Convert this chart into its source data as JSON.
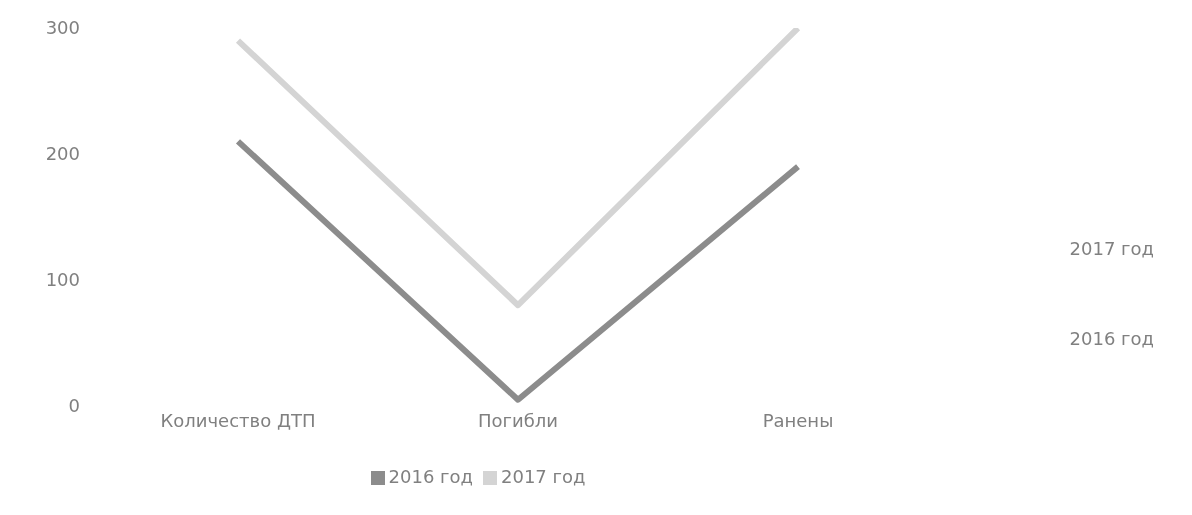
{
  "chart_data": {
    "type": "line",
    "categories": [
      "Количество ДТП",
      "Погибли",
      "Ранены"
    ],
    "series": [
      {
        "name": "2016 год",
        "color": "#8c8c8c",
        "values": [
          210,
          5,
          190
        ]
      },
      {
        "name": "2017 год",
        "color": "#d4d4d4",
        "values": [
          290,
          80,
          300
        ]
      }
    ],
    "ylim": [
      0,
      300
    ],
    "yticks": [
      0,
      100,
      200,
      300
    ],
    "grid": false,
    "legend": "bottom",
    "marker": "none",
    "line_style": "solid",
    "annotations": [
      "2017 год",
      "2016 год"
    ]
  }
}
